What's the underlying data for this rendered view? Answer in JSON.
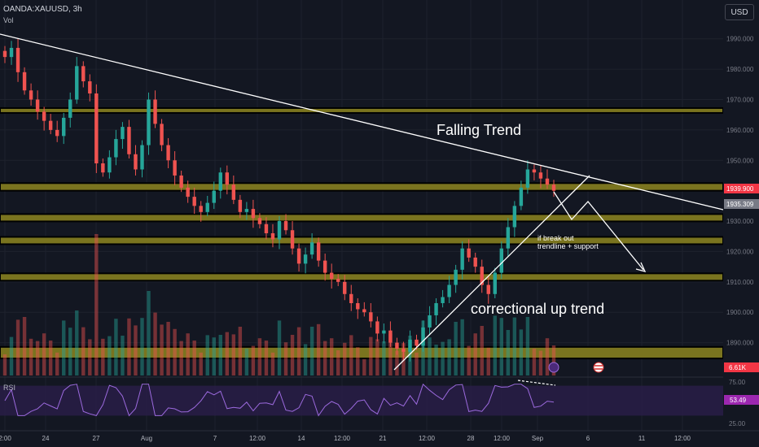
{
  "header": {
    "symbol": "OANDA:XAUUSD, 3h",
    "volume_label": "Vol",
    "currency_button": "USD"
  },
  "chart_data": {
    "type": "candlestick",
    "title": "OANDA:XAUUSD, 3h",
    "ylim": [
      1880,
      1995
    ],
    "y_ticks": [
      "1990.000",
      "1980.000",
      "1970.000",
      "1960.000",
      "1950.000",
      "1940.000",
      "1930.000",
      "1920.000",
      "1910.000",
      "1900.000",
      "1890.000"
    ],
    "x_ticks": [
      "2:00",
      "24",
      "27",
      "Aug",
      "7",
      "12:00",
      "14",
      "12:00",
      "21",
      "12:00",
      "28",
      "12:00",
      "Sep",
      "6",
      "11",
      "12:00"
    ],
    "price_tags": [
      {
        "value": "1939.900",
        "color": "#f23645"
      },
      {
        "value": "1935.309",
        "color": "#787b86"
      }
    ],
    "volume_tag": {
      "value": "6.61K",
      "color": "#f23645"
    },
    "series": [
      {
        "name": "close",
        "values": [
          1984,
          1987,
          1979,
          1973,
          1970,
          1966,
          1963,
          1960,
          1958,
          1964,
          1970,
          1981,
          1976,
          1972,
          1949,
          1946,
          1951,
          1957,
          1961,
          1952,
          1947,
          1955,
          1970,
          1962,
          1955,
          1950,
          1945,
          1941,
          1938,
          1935,
          1933,
          1936,
          1940,
          1946,
          1942,
          1937,
          1933,
          1934,
          1931,
          1929,
          1926,
          1924,
          1930,
          1927,
          1921,
          1916,
          1919,
          1923,
          1917,
          1913,
          1911,
          1910,
          1906,
          1903,
          1901,
          1900,
          1897,
          1893,
          1894,
          1890,
          1888,
          1887,
          1891,
          1889,
          1895,
          1899,
          1903,
          1905,
          1909,
          1914,
          1921,
          1918,
          1915,
          1909,
          1906,
          1913,
          1921,
          1928,
          1935,
          1941,
          1947,
          1946,
          1944,
          1942,
          1940
        ]
      }
    ],
    "zones": [
      {
        "from": 1965.8,
        "to": 1967.2
      },
      {
        "from": 1940.0,
        "to": 1942.5
      },
      {
        "from": 1929.9,
        "to": 1932.3
      },
      {
        "from": 1922.4,
        "to": 1924.8
      },
      {
        "from": 1910.4,
        "to": 1912.8
      },
      {
        "from": 1884.8,
        "to": 1888.6
      }
    ],
    "annotations": [
      {
        "text": "Falling Trend"
      },
      {
        "text": "if break out"
      },
      {
        "text": "trendline + support"
      },
      {
        "text": "correctional up trend"
      }
    ],
    "rsi": {
      "label": "RSI",
      "ylim": [
        25,
        75
      ],
      "ticks": [
        "75.00",
        "25.00"
      ],
      "last": "53.49"
    }
  }
}
